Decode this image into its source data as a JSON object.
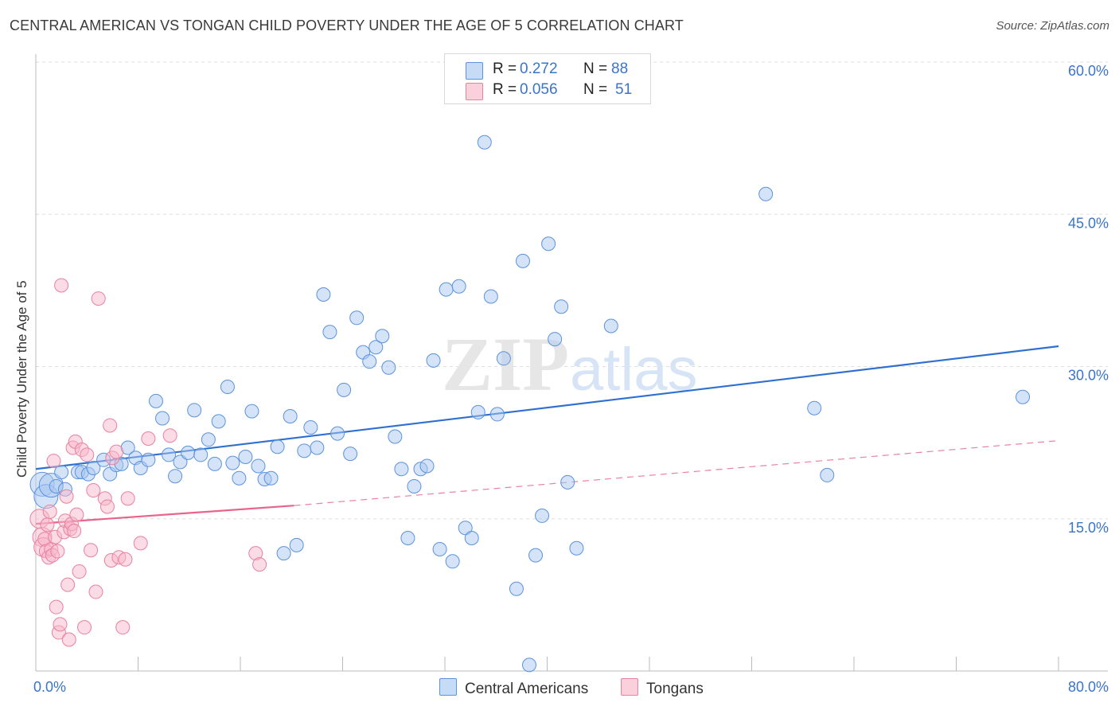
{
  "header": {
    "title": "CENTRAL AMERICAN VS TONGAN CHILD POVERTY UNDER THE AGE OF 5 CORRELATION CHART",
    "source": "Source: ZipAtlas.com"
  },
  "legend": {
    "rows": [
      {
        "r_label": "R =",
        "r_value": "0.272",
        "n_label": "N =",
        "n_value": "88",
        "color": "#a9c8f0"
      },
      {
        "r_label": "R =",
        "r_value": "0.056",
        "n_label": "N =",
        "n_value": "51",
        "color": "#f7b8cc"
      }
    ]
  },
  "watermark": {
    "zip": "ZIP",
    "atlas": "atlas"
  },
  "bottom_legend": [
    {
      "label": "Central Americans",
      "color": "#a9c8f0"
    },
    {
      "label": "Tongans",
      "color": "#f7b8cc"
    }
  ],
  "chart_data": {
    "type": "scatter",
    "title": "CENTRAL AMERICAN VS TONGAN CHILD POVERTY UNDER THE AGE OF 5 CORRELATION CHART",
    "xlabel": "",
    "ylabel": "Child Poverty Under the Age of 5",
    "xlim": [
      0,
      80
    ],
    "ylim": [
      0,
      60
    ],
    "x_tick_labels": [
      "0.0%",
      "80.0%"
    ],
    "y_ticks": [
      15,
      30,
      45,
      60
    ],
    "y_tick_labels": [
      "15.0%",
      "30.0%",
      "45.0%",
      "60.0%"
    ],
    "series": [
      {
        "name": "Central Americans",
        "color": "#a9c8f0",
        "edge": "#5b93dd",
        "trend": {
          "x0": 0,
          "y0": 19.9,
          "x1": 80,
          "y1": 32.0,
          "color": "#2f6fcf"
        },
        "points": [
          [
            0.5,
            18.4
          ],
          [
            0.8,
            17.2
          ],
          [
            1.2,
            18.3
          ],
          [
            1.6,
            18.2
          ],
          [
            2.0,
            19.6
          ],
          [
            2.3,
            17.9
          ],
          [
            3.3,
            19.6
          ],
          [
            3.6,
            19.6
          ],
          [
            4.1,
            19.4
          ],
          [
            4.5,
            20.0
          ],
          [
            5.3,
            20.8
          ],
          [
            5.8,
            19.4
          ],
          [
            6.3,
            20.3
          ],
          [
            6.7,
            20.4
          ],
          [
            7.2,
            22.0
          ],
          [
            7.8,
            21.0
          ],
          [
            8.2,
            20.0
          ],
          [
            8.8,
            20.8
          ],
          [
            9.4,
            26.6
          ],
          [
            9.9,
            24.9
          ],
          [
            10.4,
            21.3
          ],
          [
            10.9,
            19.2
          ],
          [
            11.3,
            20.6
          ],
          [
            11.9,
            21.5
          ],
          [
            12.4,
            25.7
          ],
          [
            12.9,
            21.3
          ],
          [
            13.5,
            22.8
          ],
          [
            14.0,
            20.4
          ],
          [
            14.3,
            24.6
          ],
          [
            15.0,
            28.0
          ],
          [
            15.4,
            20.5
          ],
          [
            15.9,
            19.0
          ],
          [
            16.4,
            21.1
          ],
          [
            16.9,
            25.6
          ],
          [
            17.4,
            20.2
          ],
          [
            17.9,
            18.9
          ],
          [
            18.4,
            19.0
          ],
          [
            18.9,
            22.1
          ],
          [
            19.4,
            11.6
          ],
          [
            19.9,
            25.1
          ],
          [
            20.4,
            12.4
          ],
          [
            21.0,
            21.7
          ],
          [
            21.5,
            24.0
          ],
          [
            22.0,
            22.0
          ],
          [
            22.5,
            37.1
          ],
          [
            23.0,
            33.4
          ],
          [
            23.6,
            23.4
          ],
          [
            24.1,
            27.7
          ],
          [
            24.6,
            21.4
          ],
          [
            25.1,
            34.8
          ],
          [
            25.6,
            31.4
          ],
          [
            26.1,
            30.5
          ],
          [
            26.6,
            31.9
          ],
          [
            27.1,
            33.0
          ],
          [
            27.6,
            29.9
          ],
          [
            28.1,
            23.1
          ],
          [
            28.6,
            19.9
          ],
          [
            29.1,
            13.1
          ],
          [
            29.6,
            18.2
          ],
          [
            30.1,
            19.9
          ],
          [
            30.6,
            20.2
          ],
          [
            31.1,
            30.6
          ],
          [
            31.6,
            12.0
          ],
          [
            32.1,
            37.6
          ],
          [
            32.6,
            10.8
          ],
          [
            33.1,
            37.9
          ],
          [
            33.6,
            14.1
          ],
          [
            34.1,
            13.1
          ],
          [
            34.6,
            25.5
          ],
          [
            35.1,
            52.1
          ],
          [
            35.6,
            36.9
          ],
          [
            36.1,
            25.3
          ],
          [
            36.6,
            30.8
          ],
          [
            37.6,
            8.1
          ],
          [
            38.1,
            40.4
          ],
          [
            38.6,
            0.6
          ],
          [
            39.1,
            11.4
          ],
          [
            39.6,
            15.3
          ],
          [
            40.1,
            42.1
          ],
          [
            40.6,
            32.7
          ],
          [
            41.1,
            35.9
          ],
          [
            41.6,
            18.6
          ],
          [
            42.3,
            12.1
          ],
          [
            45.0,
            34.0
          ],
          [
            57.1,
            47.0
          ],
          [
            60.9,
            25.9
          ],
          [
            61.9,
            19.3
          ],
          [
            77.2,
            27.0
          ]
        ]
      },
      {
        "name": "Tongans",
        "color": "#f7b8cc",
        "edge": "#e8829f",
        "trend": {
          "x0": 0,
          "y0": 14.5,
          "x1": 20.2,
          "y1": 16.3,
          "color": "#e8648c"
        },
        "trend_extension": {
          "x0": 20.2,
          "y0": 16.3,
          "x1": 80,
          "y1": 22.7,
          "color": "#e8829f"
        },
        "points": [
          [
            0.3,
            15.0
          ],
          [
            0.5,
            13.2
          ],
          [
            0.6,
            12.2
          ],
          [
            0.7,
            13.0
          ],
          [
            0.8,
            11.8
          ],
          [
            0.9,
            14.4
          ],
          [
            1.0,
            11.2
          ],
          [
            1.1,
            15.7
          ],
          [
            1.2,
            12.0
          ],
          [
            1.3,
            11.4
          ],
          [
            1.4,
            20.7
          ],
          [
            1.5,
            13.2
          ],
          [
            1.6,
            6.3
          ],
          [
            1.7,
            11.8
          ],
          [
            1.8,
            3.8
          ],
          [
            1.9,
            4.6
          ],
          [
            2.0,
            38.0
          ],
          [
            2.2,
            13.7
          ],
          [
            2.3,
            14.8
          ],
          [
            2.4,
            17.2
          ],
          [
            2.5,
            8.5
          ],
          [
            2.6,
            3.1
          ],
          [
            2.7,
            14.0
          ],
          [
            2.8,
            14.5
          ],
          [
            2.9,
            22.0
          ],
          [
            3.0,
            13.8
          ],
          [
            3.1,
            22.6
          ],
          [
            3.2,
            15.4
          ],
          [
            3.4,
            9.8
          ],
          [
            3.6,
            21.8
          ],
          [
            3.8,
            4.3
          ],
          [
            4.0,
            21.3
          ],
          [
            4.3,
            11.9
          ],
          [
            4.5,
            17.8
          ],
          [
            4.7,
            7.8
          ],
          [
            4.9,
            36.7
          ],
          [
            5.4,
            17.0
          ],
          [
            5.6,
            16.2
          ],
          [
            5.8,
            24.2
          ],
          [
            5.9,
            10.9
          ],
          [
            6.0,
            21.0
          ],
          [
            6.3,
            21.6
          ],
          [
            6.5,
            11.2
          ],
          [
            6.8,
            4.3
          ],
          [
            7.0,
            11.0
          ],
          [
            7.2,
            17.0
          ],
          [
            8.2,
            12.6
          ],
          [
            8.8,
            22.9
          ],
          [
            10.5,
            23.2
          ],
          [
            17.2,
            11.6
          ],
          [
            17.5,
            10.5
          ]
        ]
      }
    ]
  }
}
